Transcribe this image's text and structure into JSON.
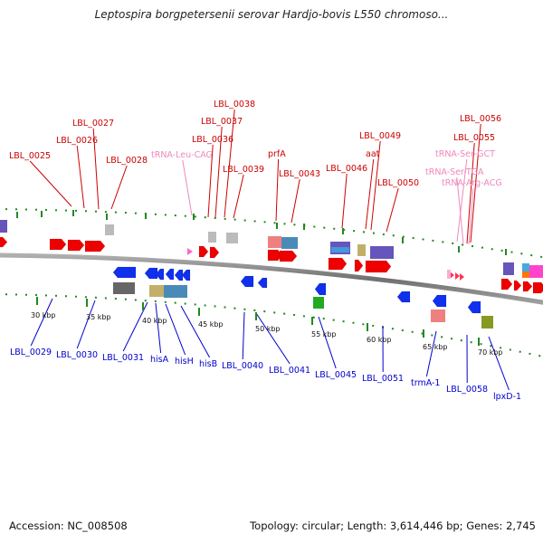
{
  "header": {
    "title": "Leptospira borgpetersenii serovar Hardjo-bovis L550 chromoso..."
  },
  "footer": {
    "accession": "Accession: NC_008508",
    "summary": "Topology: circular; Length: 3,614,446 bp; Genes: 2,745"
  },
  "colors": {
    "forward_label": "#cc0000",
    "reverse_label": "#0000cc",
    "trna_label": "#ee88bb",
    "backbone": "#808080",
    "tick_forward": "#228822"
  },
  "map": {
    "kbp_labels": [
      "30 kbp",
      "35 kbp",
      "40 kbp",
      "45 kbp",
      "50 kbp",
      "55 kbp",
      "60 kbp",
      "65 kbp",
      "70 kbp"
    ],
    "forward_labels": [
      "LBL_0025",
      "LBL_0026",
      "LBL_0027",
      "LBL_0028",
      "tRNA-Leu-CAG",
      "LBL_0036",
      "LBL_0037",
      "LBL_0038",
      "LBL_0039",
      "prfA",
      "LBL_0043",
      "LBL_0046",
      "aat",
      "LBL_0049",
      "LBL_0050",
      "tRNA-Ser-GCT",
      "tRNA-Ser-TGA",
      "tRNA-Arg-ACG",
      "LBL_0055",
      "LBL_0056"
    ],
    "reverse_labels": [
      "LBL_0029",
      "LBL_0030",
      "LBL_0031",
      "hisA",
      "hisH",
      "hisB",
      "LBL_0040",
      "LBL_0041",
      "LBL_0045",
      "LBL_0051",
      "trmA-1",
      "LBL_0058",
      "lpxD-1"
    ]
  }
}
